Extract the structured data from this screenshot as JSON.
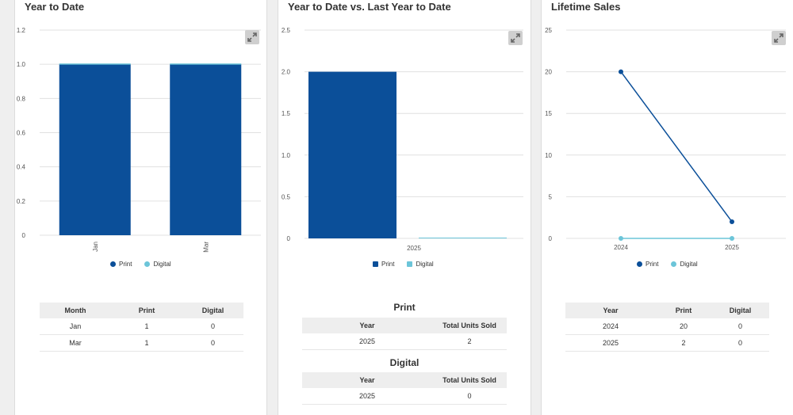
{
  "colors": {
    "print": "#0b4f99",
    "digital": "#6cc5d9",
    "grid": "#e0e0e0",
    "axis_text": "#555555"
  },
  "icons": {
    "expand": "expand-icon"
  },
  "panels": {
    "ytd": {
      "title": "Year to Date",
      "legend": [
        "Print",
        "Digital"
      ],
      "table": {
        "headers": [
          "Month",
          "Print",
          "Digital"
        ],
        "rows": [
          [
            "Jan",
            "1",
            "0"
          ],
          [
            "Mar",
            "1",
            "0"
          ]
        ]
      }
    },
    "ytd_vs": {
      "title": "Year to Date vs. Last Year to Date",
      "legend": [
        "Print",
        "Digital"
      ],
      "print_heading": "Print",
      "print_table": {
        "headers": [
          "Year",
          "Total Units Sold"
        ],
        "rows": [
          [
            "2025",
            "2"
          ]
        ]
      },
      "digital_heading": "Digital",
      "digital_table": {
        "headers": [
          "Year",
          "Total Units Sold"
        ],
        "rows": [
          [
            "2025",
            "0"
          ]
        ]
      }
    },
    "lifetime": {
      "title": "Lifetime Sales",
      "legend": [
        "Print",
        "Digital"
      ],
      "table": {
        "headers": [
          "Year",
          "Print",
          "Digital"
        ],
        "rows": [
          [
            "2024",
            "20",
            "0"
          ],
          [
            "2025",
            "2",
            "0"
          ]
        ]
      }
    }
  },
  "chart_data": [
    {
      "type": "bar",
      "stacked": true,
      "title": "Year to Date",
      "categories": [
        "Jan",
        "Mar"
      ],
      "series": [
        {
          "name": "Print",
          "values": [
            1,
            1
          ]
        },
        {
          "name": "Digital",
          "values": [
            0,
            0
          ]
        }
      ],
      "ylim": [
        0,
        1.2
      ],
      "yticks": [
        "0",
        "0.2",
        "0.4",
        "0.6",
        "0.8",
        "1.0",
        "1.2"
      ],
      "grid": true,
      "legend": "bottom"
    },
    {
      "type": "bar",
      "title": "Year to Date vs. Last Year to Date",
      "categories": [
        "2025"
      ],
      "series": [
        {
          "name": "Print",
          "values": [
            2
          ]
        },
        {
          "name": "Digital",
          "values": [
            0
          ]
        }
      ],
      "ylim": [
        0,
        2.5
      ],
      "yticks": [
        "0",
        "0.5",
        "1.0",
        "1.5",
        "2.0",
        "2.5"
      ],
      "grid": true,
      "legend": "bottom"
    },
    {
      "type": "line",
      "title": "Lifetime Sales",
      "x": [
        "2024",
        "2025"
      ],
      "series": [
        {
          "name": "Print",
          "values": [
            20,
            2
          ]
        },
        {
          "name": "Digital",
          "values": [
            0,
            0
          ]
        }
      ],
      "ylim": [
        0,
        25
      ],
      "yticks": [
        "0",
        "5",
        "10",
        "15",
        "20",
        "25"
      ],
      "grid": true,
      "legend": "bottom"
    }
  ]
}
